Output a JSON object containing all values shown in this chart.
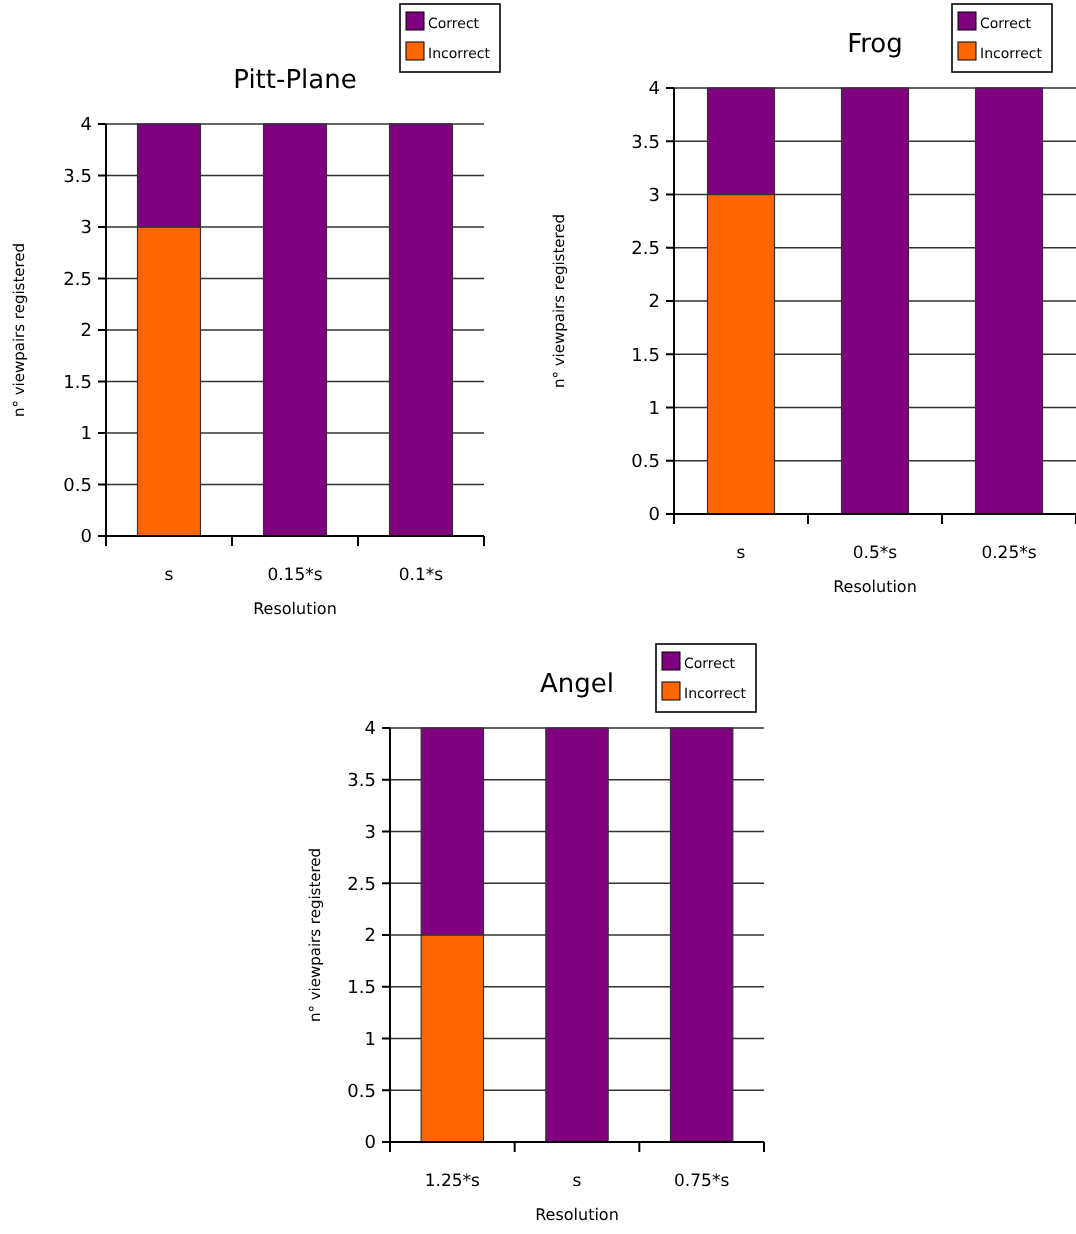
{
  "chart_data": [
    {
      "type": "bar",
      "title": "Pitt-Plane",
      "xlabel": "Resolution",
      "ylabel": "n° viewpairs registered",
      "categories": [
        "s",
        "0.15*s",
        "0.1*s"
      ],
      "stacked": true,
      "ylim": [
        0,
        4
      ],
      "yticks": [
        0,
        0.5,
        1,
        1.5,
        2,
        2.5,
        3,
        3.5,
        4
      ],
      "grid": "y",
      "legend": "top right",
      "series": [
        {
          "name": "Incorrect",
          "color": "#ff6600",
          "values": [
            3,
            0,
            0
          ]
        },
        {
          "name": "Correct",
          "color": "#800080",
          "values": [
            1,
            4,
            4
          ]
        }
      ]
    },
    {
      "type": "bar",
      "title": "Frog",
      "xlabel": "Resolution",
      "ylabel": "n° viewpairs registered",
      "categories": [
        "s",
        "0.5*s",
        "0.25*s"
      ],
      "stacked": true,
      "ylim": [
        0,
        4
      ],
      "yticks": [
        0,
        0.5,
        1,
        1.5,
        2,
        2.5,
        3,
        3.5,
        4
      ],
      "grid": "y",
      "legend": "top right",
      "series": [
        {
          "name": "Incorrect",
          "color": "#ff6600",
          "values": [
            3,
            0,
            0
          ]
        },
        {
          "name": "Correct",
          "color": "#800080",
          "values": [
            1,
            4,
            4
          ]
        }
      ]
    },
    {
      "type": "bar",
      "title": "Angel",
      "xlabel": "Resolution",
      "ylabel": "n° viewpairs registered",
      "categories": [
        "1.25*s",
        "s",
        "0.75*s"
      ],
      "stacked": true,
      "ylim": [
        0,
        4
      ],
      "yticks": [
        0,
        0.5,
        1,
        1.5,
        2,
        2.5,
        3,
        3.5,
        4
      ],
      "grid": "y",
      "legend": "top right",
      "series": [
        {
          "name": "Incorrect",
          "color": "#ff6600",
          "values": [
            2,
            0,
            0
          ]
        },
        {
          "name": "Correct",
          "color": "#800080",
          "values": [
            2,
            4,
            4
          ]
        }
      ]
    }
  ]
}
